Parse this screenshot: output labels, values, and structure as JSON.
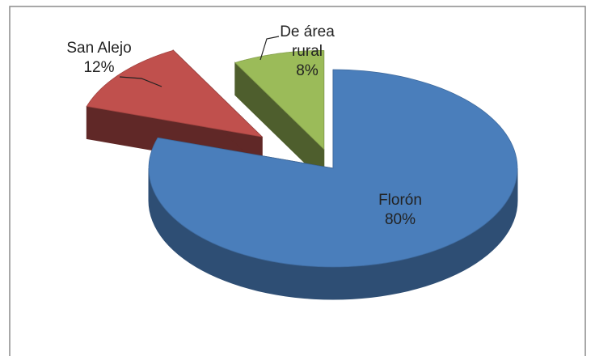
{
  "chart_data": {
    "type": "pie",
    "categories": [
      "Florón",
      "San Alejo",
      "De área rural"
    ],
    "values": [
      80,
      12,
      8
    ],
    "value_labels": [
      "80%",
      "12%",
      "8%"
    ],
    "colors": [
      "#4a7ebb",
      "#c0504d",
      "#9bbb59"
    ]
  }
}
